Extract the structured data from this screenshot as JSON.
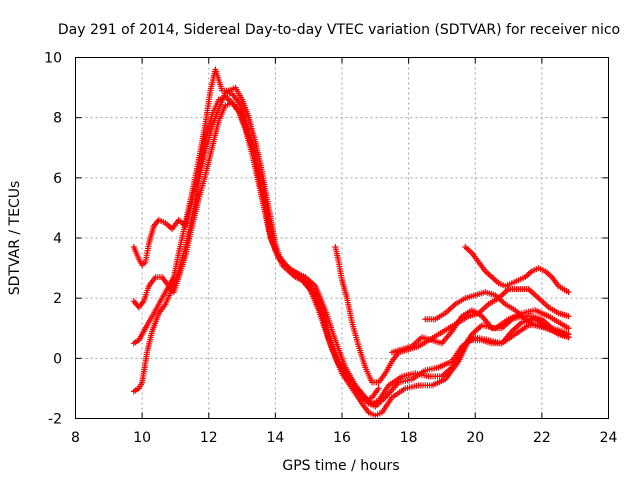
{
  "chart_data": {
    "type": "scatter",
    "title": "Day 291 of 2014, Sidereal Day-to-day VTEC variation (SDTVAR) for receiver nico",
    "xlabel": "GPS time / hours",
    "ylabel": "SDTVAR / TECUs",
    "xlim": [
      8,
      24
    ],
    "ylim": [
      -2,
      10
    ],
    "xticks": [
      8,
      10,
      12,
      14,
      16,
      18,
      20,
      22,
      24
    ],
    "yticks": [
      -2,
      0,
      2,
      4,
      6,
      8,
      10
    ],
    "grid": true,
    "marker": "+",
    "color": "#ff0000",
    "series": [
      {
        "name": "track-1",
        "points": [
          [
            9.75,
            3.7
          ],
          [
            9.9,
            3.3
          ],
          [
            10.0,
            3.1
          ],
          [
            10.1,
            3.2
          ],
          [
            10.2,
            3.8
          ],
          [
            10.35,
            4.4
          ],
          [
            10.5,
            4.6
          ],
          [
            10.7,
            4.5
          ],
          [
            10.9,
            4.3
          ],
          [
            11.1,
            4.6
          ],
          [
            11.3,
            4.4
          ],
          [
            11.5,
            5.2
          ],
          [
            11.7,
            6.3
          ],
          [
            11.9,
            7.2
          ],
          [
            12.1,
            8.1
          ],
          [
            12.3,
            8.6
          ],
          [
            12.5,
            8.7
          ],
          [
            12.7,
            8.5
          ],
          [
            12.9,
            8.2
          ],
          [
            13.1,
            7.7
          ],
          [
            13.3,
            7.0
          ],
          [
            13.5,
            6.1
          ],
          [
            13.7,
            5.1
          ],
          [
            13.85,
            4.2
          ],
          [
            14.0,
            3.6
          ],
          [
            14.2,
            3.2
          ],
          [
            14.5,
            2.9
          ],
          [
            14.9,
            2.7
          ],
          [
            15.2,
            2.4
          ],
          [
            15.5,
            1.6
          ],
          [
            15.8,
            0.6
          ],
          [
            16.1,
            -0.3
          ],
          [
            16.4,
            -0.9
          ],
          [
            16.7,
            -1.3
          ],
          [
            16.9,
            -1.5
          ],
          [
            17.1,
            -1.4
          ],
          [
            17.4,
            -0.9
          ],
          [
            17.8,
            -0.6
          ],
          [
            18.2,
            -0.5
          ],
          [
            18.6,
            -0.6
          ],
          [
            19.0,
            -0.6
          ],
          [
            19.3,
            -0.3
          ],
          [
            19.6,
            0.3
          ],
          [
            19.9,
            0.8
          ],
          [
            20.2,
            1.1
          ],
          [
            20.6,
            1.0
          ],
          [
            21.0,
            1.3
          ],
          [
            21.4,
            1.5
          ],
          [
            21.8,
            1.6
          ],
          [
            22.2,
            1.4
          ],
          [
            22.5,
            1.2
          ],
          [
            22.8,
            1.0
          ]
        ]
      },
      {
        "name": "track-2",
        "points": [
          [
            9.75,
            1.9
          ],
          [
            9.9,
            1.7
          ],
          [
            10.05,
            1.9
          ],
          [
            10.2,
            2.4
          ],
          [
            10.4,
            2.7
          ],
          [
            10.6,
            2.7
          ],
          [
            10.8,
            2.4
          ],
          [
            10.95,
            2.2
          ],
          [
            11.1,
            2.7
          ],
          [
            11.3,
            3.4
          ],
          [
            11.5,
            4.4
          ],
          [
            11.7,
            5.3
          ],
          [
            11.9,
            6.1
          ],
          [
            12.1,
            7.0
          ],
          [
            12.3,
            7.9
          ],
          [
            12.5,
            8.4
          ],
          [
            12.7,
            8.5
          ],
          [
            12.9,
            8.2
          ],
          [
            13.1,
            7.6
          ],
          [
            13.3,
            6.8
          ],
          [
            13.5,
            5.8
          ],
          [
            13.7,
            4.8
          ],
          [
            13.85,
            4.0
          ],
          [
            14.1,
            3.4
          ],
          [
            14.4,
            3.0
          ],
          [
            14.8,
            2.6
          ],
          [
            15.1,
            2.2
          ],
          [
            15.4,
            1.4
          ],
          [
            15.7,
            0.3
          ],
          [
            16.0,
            -0.5
          ],
          [
            16.3,
            -1.0
          ],
          [
            16.6,
            -1.5
          ],
          [
            16.8,
            -1.8
          ],
          [
            17.0,
            -1.9
          ],
          [
            17.2,
            -1.8
          ],
          [
            17.5,
            -1.3
          ],
          [
            17.9,
            -1.0
          ],
          [
            18.3,
            -0.9
          ],
          [
            18.7,
            -0.9
          ],
          [
            19.1,
            -0.7
          ],
          [
            19.5,
            -0.1
          ],
          [
            19.8,
            0.6
          ],
          [
            20.2,
            0.6
          ],
          [
            20.5,
            0.5
          ],
          [
            20.8,
            0.5
          ],
          [
            21.1,
            0.9
          ],
          [
            21.4,
            1.2
          ],
          [
            21.8,
            1.3
          ],
          [
            22.2,
            1.0
          ],
          [
            22.5,
            0.8
          ],
          [
            22.8,
            0.7
          ]
        ]
      },
      {
        "name": "track-3",
        "points": [
          [
            9.75,
            0.5
          ],
          [
            9.9,
            0.6
          ],
          [
            10.05,
            0.9
          ],
          [
            10.2,
            1.2
          ],
          [
            10.4,
            1.6
          ],
          [
            10.6,
            2.0
          ],
          [
            10.8,
            2.4
          ],
          [
            10.95,
            2.7
          ],
          [
            11.1,
            3.5
          ],
          [
            11.3,
            4.5
          ],
          [
            11.5,
            5.5
          ],
          [
            11.7,
            6.6
          ],
          [
            11.9,
            7.8
          ],
          [
            12.05,
            8.9
          ],
          [
            12.2,
            9.6
          ],
          [
            12.4,
            8.9
          ],
          [
            12.6,
            8.9
          ],
          [
            12.8,
            9.0
          ],
          [
            13.0,
            8.6
          ],
          [
            13.2,
            8.0
          ],
          [
            13.4,
            7.2
          ],
          [
            13.6,
            6.2
          ],
          [
            13.8,
            5.0
          ],
          [
            14.0,
            3.8
          ],
          [
            14.2,
            3.1
          ],
          [
            14.6,
            2.7
          ],
          [
            15.0,
            2.5
          ],
          [
            15.3,
            1.9
          ],
          [
            15.6,
            0.8
          ],
          [
            15.9,
            -0.1
          ],
          [
            16.2,
            -0.6
          ],
          [
            16.5,
            -1.1
          ],
          [
            16.8,
            -1.5
          ],
          [
            17.0,
            -1.6
          ],
          [
            17.3,
            -1.3
          ],
          [
            17.7,
            -0.8
          ],
          [
            18.1,
            -0.7
          ],
          [
            18.5,
            -0.4
          ],
          [
            18.9,
            -0.3
          ],
          [
            19.3,
            -0.1
          ],
          [
            19.6,
            0.4
          ],
          [
            20.0,
            0.7
          ],
          [
            20.4,
            0.6
          ],
          [
            20.8,
            0.5
          ],
          [
            21.2,
            0.8
          ],
          [
            21.6,
            1.1
          ],
          [
            22.0,
            1.1
          ],
          [
            22.4,
            0.9
          ],
          [
            22.8,
            0.7
          ]
        ]
      },
      {
        "name": "track-4",
        "points": [
          [
            9.75,
            -1.1
          ],
          [
            9.9,
            -1.0
          ],
          [
            10.0,
            -0.8
          ],
          [
            10.15,
            0.2
          ],
          [
            10.3,
            0.9
          ],
          [
            10.5,
            1.5
          ],
          [
            10.7,
            1.8
          ],
          [
            10.9,
            2.3
          ],
          [
            11.1,
            2.9
          ],
          [
            11.3,
            3.7
          ],
          [
            11.5,
            4.7
          ],
          [
            11.7,
            5.9
          ],
          [
            11.9,
            6.9
          ],
          [
            12.1,
            7.7
          ],
          [
            12.3,
            8.3
          ],
          [
            12.5,
            8.8
          ],
          [
            12.7,
            8.8
          ],
          [
            12.9,
            8.5
          ],
          [
            13.1,
            7.9
          ],
          [
            13.3,
            7.1
          ],
          [
            13.5,
            6.0
          ],
          [
            13.7,
            4.8
          ],
          [
            13.9,
            3.9
          ],
          [
            14.1,
            3.3
          ],
          [
            14.4,
            3.0
          ],
          [
            14.7,
            2.8
          ],
          [
            15.0,
            2.4
          ],
          [
            15.3,
            1.6
          ],
          [
            15.6,
            0.6
          ],
          [
            15.9,
            -0.2
          ],
          [
            16.2,
            -0.7
          ],
          [
            16.5,
            -1.2
          ],
          [
            16.7,
            -1.4
          ],
          [
            16.9,
            -1.3
          ],
          [
            17.1,
            -1.0
          ]
        ]
      },
      {
        "name": "track-5",
        "points": [
          [
            15.8,
            3.7
          ],
          [
            15.9,
            3.2
          ],
          [
            16.0,
            2.6
          ],
          [
            16.15,
            2.0
          ],
          [
            16.3,
            1.2
          ],
          [
            16.5,
            0.4
          ],
          [
            16.7,
            -0.3
          ],
          [
            16.9,
            -0.8
          ],
          [
            17.1,
            -0.8
          ],
          [
            17.3,
            -0.5
          ],
          [
            17.5,
            -0.1
          ],
          [
            17.7,
            0.2
          ],
          [
            18.0,
            0.3
          ],
          [
            18.3,
            0.4
          ],
          [
            18.6,
            0.6
          ],
          [
            18.9,
            0.8
          ],
          [
            19.2,
            1.0
          ],
          [
            19.5,
            1.2
          ],
          [
            19.8,
            1.4
          ],
          [
            20.1,
            1.5
          ],
          [
            20.4,
            1.8
          ],
          [
            20.7,
            2.0
          ],
          [
            21.0,
            2.3
          ],
          [
            21.3,
            2.3
          ],
          [
            21.6,
            2.3
          ],
          [
            21.9,
            2.0
          ],
          [
            22.2,
            1.7
          ],
          [
            22.5,
            1.5
          ],
          [
            22.8,
            1.4
          ]
        ]
      },
      {
        "name": "track-6",
        "points": [
          [
            17.5,
            0.2
          ],
          [
            17.8,
            0.3
          ],
          [
            18.1,
            0.4
          ],
          [
            18.4,
            0.7
          ],
          [
            18.7,
            0.6
          ],
          [
            19.0,
            0.5
          ],
          [
            19.3,
            0.9
          ],
          [
            19.6,
            1.4
          ],
          [
            19.9,
            1.6
          ],
          [
            20.2,
            1.4
          ],
          [
            20.5,
            1.0
          ],
          [
            20.8,
            1.0
          ],
          [
            21.1,
            1.3
          ],
          [
            21.4,
            1.4
          ],
          [
            21.7,
            1.4
          ],
          [
            22.0,
            1.3
          ],
          [
            22.3,
            1.0
          ],
          [
            22.6,
            0.9
          ],
          [
            22.8,
            0.8
          ]
        ]
      },
      {
        "name": "track-7",
        "points": [
          [
            18.5,
            1.3
          ],
          [
            18.8,
            1.3
          ],
          [
            19.1,
            1.5
          ],
          [
            19.4,
            1.8
          ],
          [
            19.7,
            2.0
          ],
          [
            20.0,
            2.1
          ],
          [
            20.3,
            2.2
          ],
          [
            20.6,
            2.1
          ],
          [
            20.9,
            1.8
          ],
          [
            21.2,
            1.6
          ],
          [
            21.5,
            1.3
          ],
          [
            21.8,
            1.1
          ],
          [
            22.1,
            1.0
          ],
          [
            22.4,
            0.9
          ],
          [
            22.8,
            0.8
          ]
        ]
      },
      {
        "name": "track-8",
        "points": [
          [
            19.7,
            3.7
          ],
          [
            19.9,
            3.5
          ],
          [
            20.1,
            3.2
          ],
          [
            20.3,
            2.9
          ],
          [
            20.5,
            2.7
          ],
          [
            20.7,
            2.5
          ],
          [
            20.9,
            2.4
          ],
          [
            21.1,
            2.5
          ],
          [
            21.3,
            2.6
          ],
          [
            21.5,
            2.7
          ],
          [
            21.7,
            2.9
          ],
          [
            21.9,
            3.0
          ],
          [
            22.1,
            2.9
          ],
          [
            22.3,
            2.7
          ],
          [
            22.5,
            2.4
          ],
          [
            22.8,
            2.2
          ]
        ]
      }
    ]
  }
}
